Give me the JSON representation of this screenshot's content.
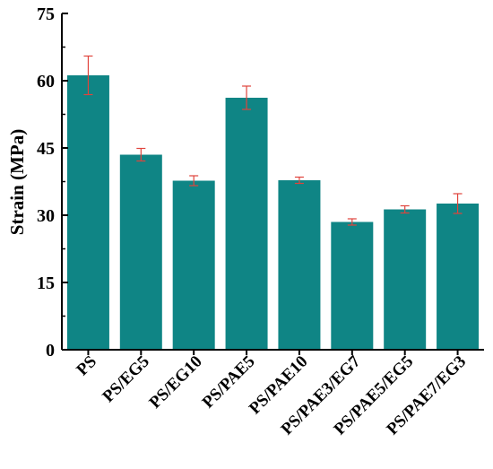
{
  "chart_data": {
    "type": "bar",
    "categories": [
      "PS",
      "PS/EG5",
      "PS/EG10",
      "PS/PAE5",
      "PS/PAE10",
      "PS/PAE3/EG7",
      "PS/PAE5/EG5",
      "PS/PAE7/EG3"
    ],
    "values": [
      61.2,
      43.5,
      37.7,
      56.2,
      37.8,
      28.5,
      31.3,
      32.6
    ],
    "errors": [
      4.3,
      1.4,
      1.1,
      2.6,
      0.7,
      0.7,
      0.8,
      2.2
    ],
    "title": "",
    "xlabel": "",
    "ylabel": "Strain (MPa)",
    "ylim": [
      0,
      75
    ],
    "yticks": [
      0,
      15,
      30,
      45,
      60,
      75
    ],
    "grid": false,
    "colors": {
      "bar": "#0f8585",
      "error": "#e0443c",
      "axis": "#000000"
    }
  }
}
